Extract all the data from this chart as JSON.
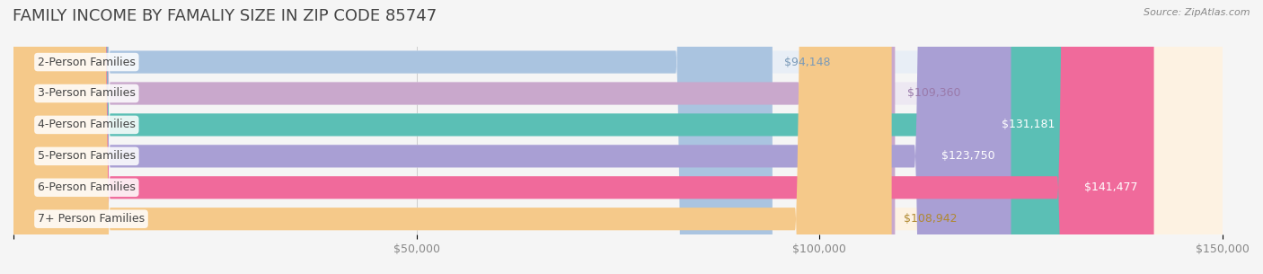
{
  "title": "FAMILY INCOME BY FAMALIY SIZE IN ZIP CODE 85747",
  "source": "Source: ZipAtlas.com",
  "categories": [
    "2-Person Families",
    "3-Person Families",
    "4-Person Families",
    "5-Person Families",
    "6-Person Families",
    "7+ Person Families"
  ],
  "values": [
    94148,
    109360,
    131181,
    123750,
    141477,
    108942
  ],
  "bar_colors": [
    "#aac4e0",
    "#c9a8cc",
    "#5bbfb5",
    "#a99fd4",
    "#f06a9b",
    "#f5c98a"
  ],
  "bar_bg_colors": [
    "#e8eef6",
    "#ede8f2",
    "#e0f2f0",
    "#eae8f5",
    "#fce8f0",
    "#fdf2e2"
  ],
  "value_labels": [
    "$94,148",
    "$109,360",
    "$131,181",
    "$123,750",
    "$141,477",
    "$108,942"
  ],
  "value_label_colors": [
    "#7a9ab8",
    "#9a7aaa",
    "#ffffff",
    "#ffffff",
    "#ffffff",
    "#b08830"
  ],
  "xlim": [
    0,
    150000
  ],
  "xticks": [
    0,
    50000,
    100000,
    150000
  ],
  "xticklabels": [
    "",
    "$50,000",
    "$100,000",
    "$150,000"
  ],
  "background_color": "#f5f5f5",
  "title_fontsize": 13,
  "label_fontsize": 9,
  "value_fontsize": 9,
  "tick_fontsize": 9
}
